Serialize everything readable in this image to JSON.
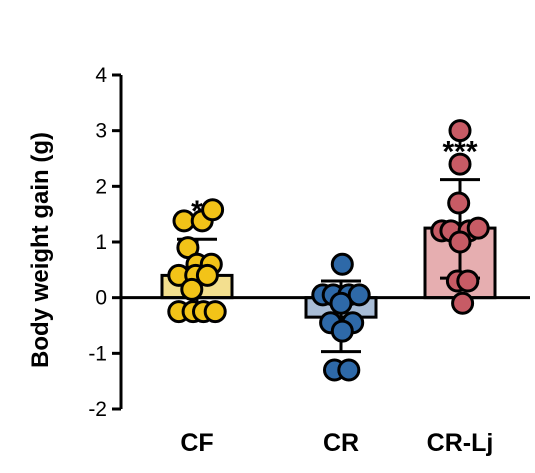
{
  "chart_data": {
    "type": "bar",
    "title": "",
    "xlabel": "",
    "ylabel": "Body weight gain (g)",
    "ylim": [
      -2,
      4
    ],
    "yticks": [
      -2,
      -1,
      0,
      1,
      2,
      3,
      4
    ],
    "ytick_labels": [
      "-2",
      "-1",
      "0",
      "1",
      "2",
      "3",
      "4"
    ],
    "grid": false,
    "legend": "none",
    "categories": [
      "CF",
      "CR",
      "CR-Lj"
    ],
    "values": [
      0.4,
      -0.35,
      1.25
    ],
    "error": [
      {
        "low": -0.25,
        "high": 1.05
      },
      {
        "low": -0.97,
        "high": 0.3
      },
      {
        "low": 0.35,
        "high": 2.12
      }
    ],
    "significance": [
      "*",
      "",
      "***"
    ],
    "bar_colors": [
      "#f3df8f",
      "#a9bdd6",
      "#e6aeb0"
    ],
    "point_colors": [
      "#f2c318",
      "#2e69a8",
      "#c75b65"
    ],
    "points": [
      [
        {
          "dx": -0.5,
          "y": 1.38
        },
        {
          "dx": 0.2,
          "y": 1.38
        },
        {
          "dx": 0.6,
          "y": 1.58
        },
        {
          "dx": -0.35,
          "y": 0.9
        },
        {
          "dx": 0.0,
          "y": 0.6
        },
        {
          "dx": 0.55,
          "y": 0.6
        },
        {
          "dx": -0.7,
          "y": 0.4
        },
        {
          "dx": -0.05,
          "y": 0.4
        },
        {
          "dx": 0.4,
          "y": 0.4
        },
        {
          "dx": -0.2,
          "y": 0.15
        },
        {
          "dx": -0.7,
          "y": -0.25
        },
        {
          "dx": -0.15,
          "y": -0.25
        },
        {
          "dx": 0.25,
          "y": -0.25
        },
        {
          "dx": 0.7,
          "y": -0.25
        }
      ],
      [
        {
          "dx": 0.05,
          "y": 0.6
        },
        {
          "dx": -0.7,
          "y": 0.05
        },
        {
          "dx": -0.3,
          "y": 0.05
        },
        {
          "dx": 0.3,
          "y": 0.05
        },
        {
          "dx": 0.7,
          "y": 0.05
        },
        {
          "dx": 0.0,
          "y": -0.1
        },
        {
          "dx": -0.4,
          "y": -0.45
        },
        {
          "dx": 0.45,
          "y": -0.45
        },
        {
          "dx": 0.05,
          "y": -0.6
        },
        {
          "dx": -0.25,
          "y": -1.3
        },
        {
          "dx": 0.3,
          "y": -1.3
        }
      ],
      [
        {
          "dx": 0.0,
          "y": 3.0
        },
        {
          "dx": 0.0,
          "y": 2.4
        },
        {
          "dx": -0.05,
          "y": 1.7
        },
        {
          "dx": -0.7,
          "y": 1.2
        },
        {
          "dx": -0.35,
          "y": 1.2
        },
        {
          "dx": 0.35,
          "y": 1.2
        },
        {
          "dx": 0.7,
          "y": 1.25
        },
        {
          "dx": 0.0,
          "y": 1.0
        },
        {
          "dx": -0.1,
          "y": 0.3
        },
        {
          "dx": 0.3,
          "y": 0.3
        },
        {
          "dx": 0.1,
          "y": -0.1
        }
      ]
    ]
  }
}
